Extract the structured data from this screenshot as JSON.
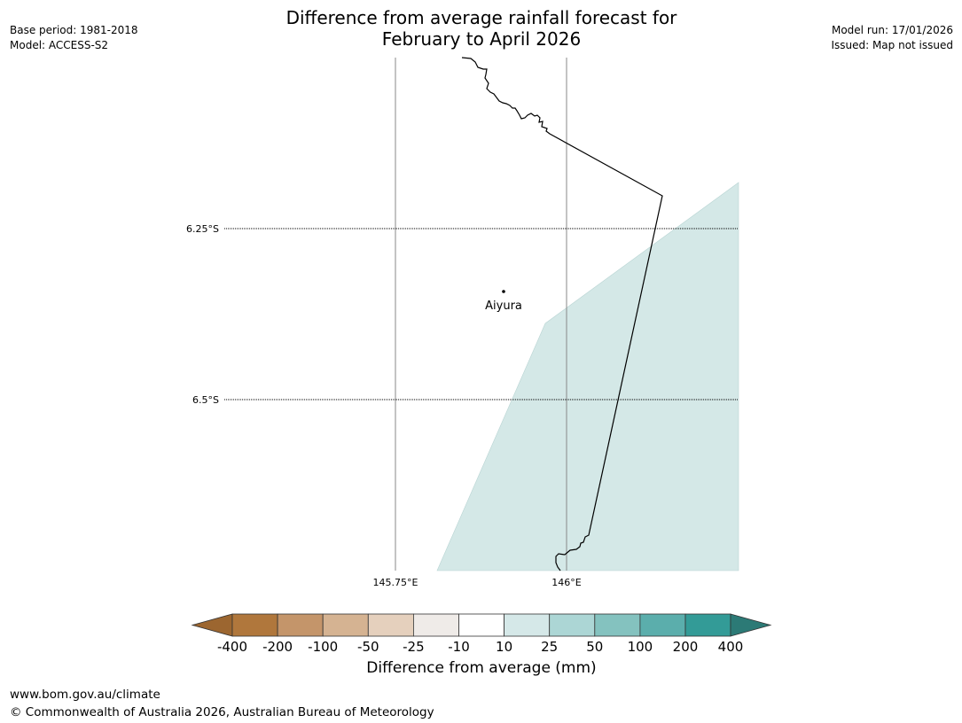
{
  "title": {
    "line1": "Difference from average rainfall forecast for",
    "line2": "February to April 2026"
  },
  "meta_left": {
    "base_period": "Base period: 1981-2018",
    "model": "Model: ACCESS-S2"
  },
  "meta_right": {
    "model_run": "Model run: 17/01/2026",
    "issued": "Issued: Map not issued"
  },
  "map": {
    "latitude_labels": [
      "6.25°S",
      "6.5°S"
    ],
    "longitude_labels": [
      "145.75°E",
      "146°E"
    ],
    "place": {
      "name": "Aiyura"
    },
    "shaded_region_category": "10 to 25",
    "colors": {
      "shaded_region": "#d4e8e7",
      "coastline": "#000000",
      "gridline": "#888888"
    }
  },
  "colorbar": {
    "title": "Difference from average (mm)",
    "tick_labels": [
      "-400",
      "-200",
      "-100",
      "-50",
      "-25",
      "-10",
      "10",
      "25",
      "50",
      "100",
      "200",
      "400"
    ],
    "colors": [
      "#9c6630",
      "#b0773c",
      "#c4956a",
      "#d5b392",
      "#e5d0bd",
      "#efebe8",
      "#ffffff",
      "#d5e8e8",
      "#acd6d5",
      "#84c2bf",
      "#5baeac",
      "#339b97",
      "#2c7a76"
    ]
  },
  "footer": {
    "url": "www.bom.gov.au/climate",
    "copyright": "© Commonwealth of Australia 2026, Australian Bureau of Meteorology"
  }
}
